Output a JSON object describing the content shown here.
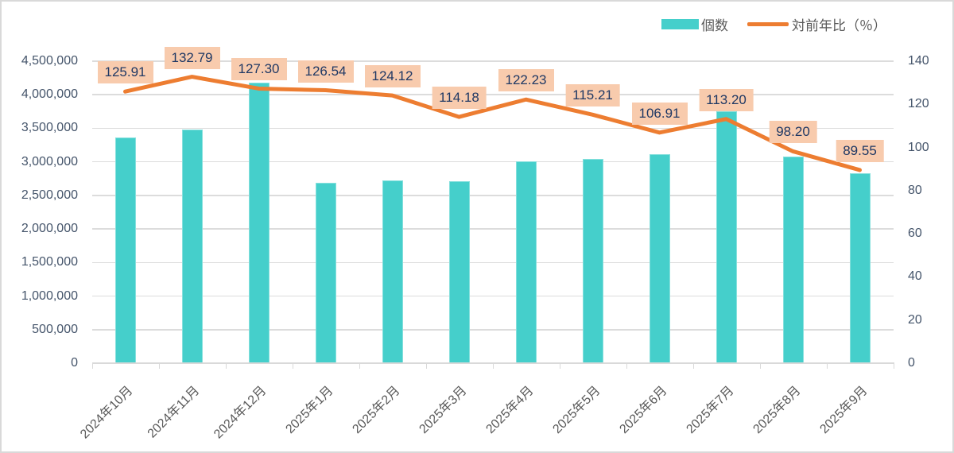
{
  "legend": {
    "series1": "個数",
    "series2": "対前年比（％）"
  },
  "colors": {
    "bar": "#45cfcb",
    "line": "#ed7d31",
    "label_bg": "#f8cbad",
    "label_text": "#1f3864",
    "grid": "#dcdcdc",
    "axis_text": "#44546a",
    "xaxis_text": "#595959"
  },
  "chart_data": {
    "type": "combo",
    "title": "",
    "categories": [
      "2024年10月",
      "2024年11月",
      "2024年12月",
      "2025年1月",
      "2025年2月",
      "2025年3月",
      "2025年4月",
      "2025年5月",
      "2025年6月",
      "2025年7月",
      "2025年8月",
      "2025年9月"
    ],
    "series": [
      {
        "name": "個数",
        "type": "bar",
        "axis": "left",
        "values": [
          3360000,
          3480000,
          4175000,
          2685000,
          2720000,
          2710000,
          3010000,
          3045000,
          3115000,
          3750000,
          3080000,
          2830000
        ]
      },
      {
        "name": "対前年比（％）",
        "type": "line",
        "axis": "right",
        "values": [
          125.91,
          132.79,
          127.3,
          126.54,
          124.12,
          114.18,
          122.23,
          115.21,
          106.91,
          113.2,
          98.2,
          89.55
        ],
        "labels": [
          "125.91",
          "132.79",
          "127.30",
          "126.54",
          "124.12",
          "114.18",
          "122.23",
          "115.21",
          "106.91",
          "113.20",
          "98.20",
          "89.55"
        ]
      }
    ],
    "left_axis": {
      "min": 0,
      "max": 4500000,
      "step": 500000,
      "tick_labels": [
        "0",
        "500,000",
        "1,000,000",
        "1,500,000",
        "2,000,000",
        "2,500,000",
        "3,000,000",
        "3,500,000",
        "4,000,000",
        "4,500,000"
      ]
    },
    "right_axis": {
      "min": 0,
      "max": 140,
      "step": 20,
      "tick_labels": [
        "0",
        "20",
        "40",
        "60",
        "80",
        "100",
        "120",
        "140"
      ]
    },
    "grid": true,
    "legend_position": "top-right"
  }
}
